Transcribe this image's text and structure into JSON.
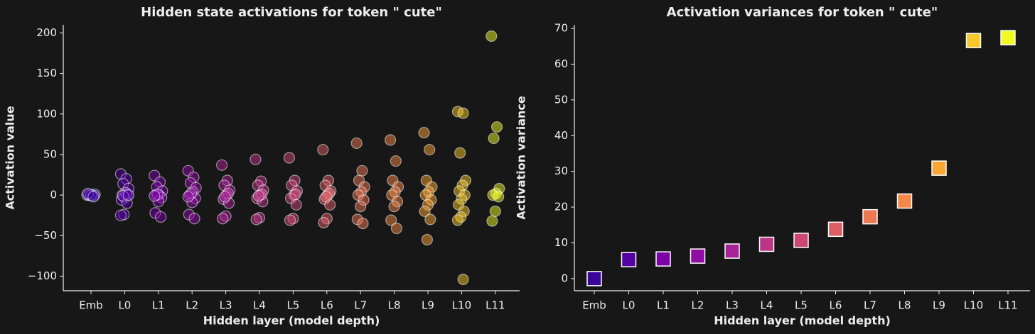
{
  "chart_data": [
    {
      "type": "strip",
      "title": "Hidden state activations for token \" cute\"",
      "xlabel": "Hidden layer (model depth)",
      "ylabel": "Activation value",
      "categories": [
        "Emb",
        "L0",
        "L1",
        "L2",
        "L3",
        "L4",
        "L5",
        "L6",
        "L7",
        "L8",
        "L9",
        "L10",
        "L11"
      ],
      "colors": [
        "#3b049a",
        "#5302a3",
        "#7a02a8",
        "#8f0da4",
        "#a72197",
        "#bc3587",
        "#cc4778",
        "#dd5e66",
        "#ed7953",
        "#f48849",
        "#fca636",
        "#f8c72a",
        "#f0f921"
      ],
      "values": [
        [
          0,
          0,
          0,
          1,
          -1,
          0.5,
          -0.5,
          0,
          2,
          -2
        ],
        [
          26,
          20,
          14,
          8,
          3,
          0,
          0,
          -3,
          -6,
          -10,
          -24,
          -25,
          1,
          -1,
          0
        ],
        [
          24,
          16,
          10,
          5,
          0,
          0,
          -3,
          -8,
          -22,
          -27,
          1,
          -1
        ],
        [
          30,
          22,
          15,
          9,
          4,
          0,
          -4,
          -9,
          -24,
          -29,
          2,
          -2
        ],
        [
          37,
          18,
          12,
          6,
          0,
          -5,
          -10,
          -26,
          -29,
          2,
          -2
        ],
        [
          44,
          17,
          12,
          6,
          0,
          -4,
          -8,
          -28,
          -30,
          1,
          -1
        ],
        [
          46,
          18,
          12,
          5,
          0,
          -4,
          -12,
          -29,
          -31,
          1
        ],
        [
          56,
          18,
          12,
          5,
          0,
          -5,
          -12,
          -29,
          -34,
          2,
          -2
        ],
        [
          64,
          30,
          18,
          10,
          4,
          0,
          -6,
          -14,
          -30,
          -35
        ],
        [
          68,
          42,
          18,
          10,
          4,
          0,
          -8,
          -14,
          -31,
          -41
        ],
        [
          77,
          56,
          18,
          10,
          4,
          0,
          -6,
          -12,
          -20,
          -30,
          -55
        ],
        [
          103,
          101,
          52,
          18,
          12,
          5,
          0,
          -5,
          -12,
          -20,
          -27,
          -31,
          -104
        ],
        [
          196,
          84,
          70,
          8,
          2,
          0,
          -2,
          -20,
          -32
        ]
      ],
      "marker": "circle",
      "ylim": [
        -118,
        210
      ],
      "yticks": [
        {
          "value": -100,
          "label": "−100"
        },
        {
          "value": -50,
          "label": "−50"
        },
        0,
        50,
        100,
        150,
        200
      ]
    },
    {
      "type": "scatter",
      "title": "Activation variances for token \" cute\"",
      "xlabel": "Hidden layer (model depth)",
      "ylabel": "Activation variance",
      "categories": [
        "Emb",
        "L0",
        "L1",
        "L2",
        "L3",
        "L4",
        "L5",
        "L6",
        "L7",
        "L8",
        "L9",
        "L10",
        "L11"
      ],
      "colors": [
        "#3b049a",
        "#5302a3",
        "#7a02a8",
        "#8f0da4",
        "#a72197",
        "#bc3587",
        "#cc4778",
        "#dd5e66",
        "#ed7953",
        "#f48849",
        "#fca636",
        "#f8c72a",
        "#f0f921"
      ],
      "values": [
        0,
        5.3,
        5.5,
        6.3,
        7.7,
        9.6,
        10.7,
        13.8,
        17.3,
        21.7,
        30.9,
        66.6,
        67.4
      ],
      "marker": "square",
      "ylim": [
        -3.4,
        71
      ],
      "yticks": [
        0,
        10,
        20,
        30,
        40,
        50,
        60,
        70
      ]
    }
  ]
}
